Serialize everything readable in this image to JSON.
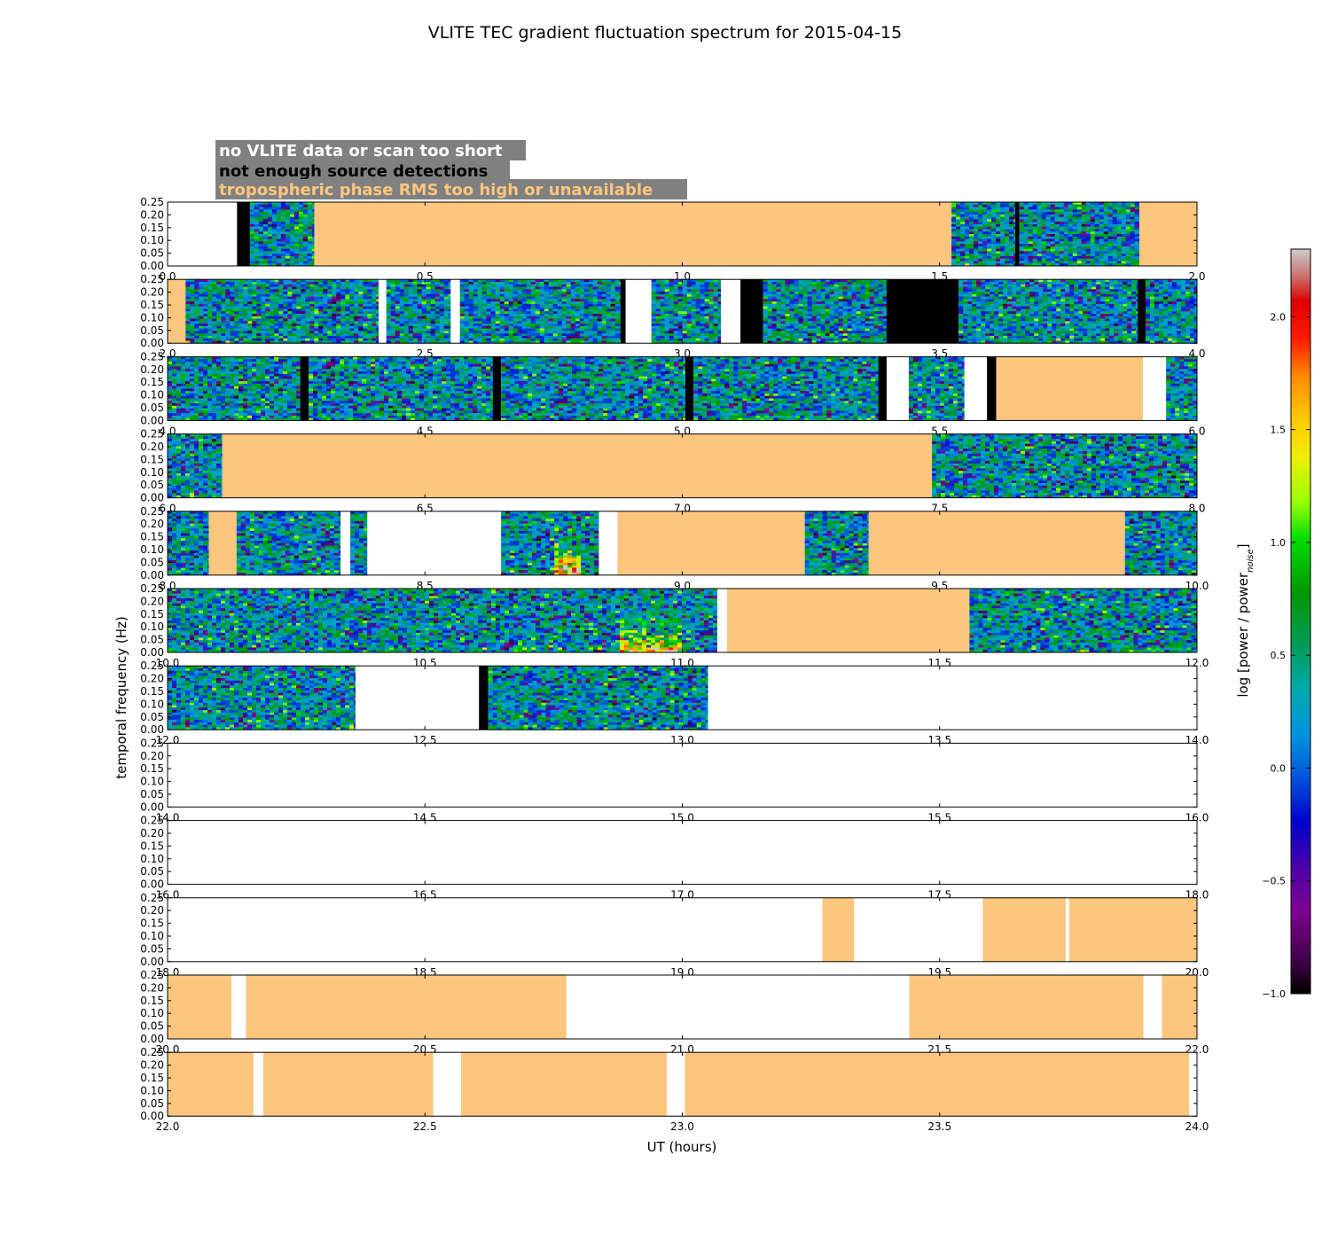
{
  "chart_data": {
    "type": "heatmap",
    "title": "VLITE TEC gradient fluctuation spectrum for 2015-04-15",
    "xlabel": "UT (hours)",
    "ylabel": "temporal frequency (Hz)",
    "ylim": [
      0,
      0.25
    ],
    "yticks": [
      "0.00",
      "0.05",
      "0.10",
      "0.15",
      "0.20",
      "0.25"
    ],
    "colorbar": {
      "label_main": "log [power / power",
      "label_sub": "noise",
      "label_end": "]",
      "range": [
        -1.0,
        2.3
      ],
      "ticks": [
        "−1.0",
        "−0.5",
        "0.0",
        "0.5",
        "1.0",
        "1.5",
        "2.0"
      ],
      "tick_values": [
        -1.0,
        -0.5,
        0.0,
        0.5,
        1.0,
        1.5,
        2.0
      ]
    },
    "legend": [
      {
        "label": "no VLITE data or scan too short",
        "text_color": "#ffffff",
        "meaning": "white"
      },
      {
        "label": "not enough source detections",
        "text_color": "#000000",
        "meaning": "black"
      },
      {
        "label": "tropospheric phase RMS too high or unavailable",
        "text_color": "#fdc67e",
        "meaning": "orange"
      }
    ],
    "legend_box_color": "#808080",
    "status_colors": {
      "none": "#ffffff",
      "few": "#000000",
      "trop": "#fdc67e"
    },
    "panels": [
      {
        "x_range": [
          0,
          2
        ],
        "xticks": [
          "0.0",
          "0.5",
          "1.0",
          "1.5",
          "2.0"
        ],
        "segments": [
          {
            "x0": 0,
            "x1": 0.135,
            "kind": "none"
          },
          {
            "x0": 0.135,
            "x1": 0.16,
            "kind": "few"
          },
          {
            "x0": 0.16,
            "x1": 0.285,
            "kind": "data"
          },
          {
            "x0": 0.285,
            "x1": 1.523,
            "kind": "trop"
          },
          {
            "x0": 1.523,
            "x1": 1.647,
            "kind": "data"
          },
          {
            "x0": 1.647,
            "x1": 1.655,
            "kind": "few"
          },
          {
            "x0": 1.655,
            "x1": 1.888,
            "kind": "data"
          },
          {
            "x0": 1.888,
            "x1": 2.0,
            "kind": "trop"
          }
        ]
      },
      {
        "x_range": [
          2,
          4
        ],
        "xticks": [
          "2.0",
          "2.5",
          "3.0",
          "3.5",
          "4.0"
        ],
        "segments": [
          {
            "x0": 2.0,
            "x1": 2.035,
            "kind": "trop"
          },
          {
            "x0": 2.035,
            "x1": 2.41,
            "kind": "data"
          },
          {
            "x0": 2.41,
            "x1": 2.425,
            "kind": "none"
          },
          {
            "x0": 2.425,
            "x1": 2.55,
            "kind": "data"
          },
          {
            "x0": 2.55,
            "x1": 2.568,
            "kind": "none"
          },
          {
            "x0": 2.568,
            "x1": 2.88,
            "kind": "data"
          },
          {
            "x0": 2.88,
            "x1": 2.89,
            "kind": "few"
          },
          {
            "x0": 2.89,
            "x1": 2.94,
            "kind": "none"
          },
          {
            "x0": 2.94,
            "x1": 3.075,
            "kind": "data"
          },
          {
            "x0": 3.075,
            "x1": 3.113,
            "kind": "none"
          },
          {
            "x0": 3.113,
            "x1": 3.157,
            "kind": "few"
          },
          {
            "x0": 3.157,
            "x1": 3.397,
            "kind": "data"
          },
          {
            "x0": 3.397,
            "x1": 3.537,
            "kind": "few"
          },
          {
            "x0": 3.537,
            "x1": 3.885,
            "kind": "data"
          },
          {
            "x0": 3.885,
            "x1": 3.9,
            "kind": "few"
          },
          {
            "x0": 3.9,
            "x1": 4.0,
            "kind": "data"
          }
        ]
      },
      {
        "x_range": [
          4,
          6
        ],
        "xticks": [
          "4.0",
          "4.5",
          "5.0",
          "5.5",
          "6.0"
        ],
        "segments": [
          {
            "x0": 4.0,
            "x1": 4.258,
            "kind": "data"
          },
          {
            "x0": 4.258,
            "x1": 4.274,
            "kind": "few"
          },
          {
            "x0": 4.274,
            "x1": 4.632,
            "kind": "data"
          },
          {
            "x0": 4.632,
            "x1": 4.648,
            "kind": "few"
          },
          {
            "x0": 4.648,
            "x1": 5.006,
            "kind": "data"
          },
          {
            "x0": 5.006,
            "x1": 5.022,
            "kind": "few"
          },
          {
            "x0": 5.022,
            "x1": 5.381,
            "kind": "data"
          },
          {
            "x0": 5.381,
            "x1": 5.397,
            "kind": "few"
          },
          {
            "x0": 5.397,
            "x1": 5.44,
            "kind": "none"
          },
          {
            "x0": 5.44,
            "x1": 5.548,
            "kind": "data"
          },
          {
            "x0": 5.548,
            "x1": 5.592,
            "kind": "none"
          },
          {
            "x0": 5.592,
            "x1": 5.61,
            "kind": "few"
          },
          {
            "x0": 5.61,
            "x1": 5.895,
            "kind": "trop"
          },
          {
            "x0": 5.895,
            "x1": 5.94,
            "kind": "none"
          },
          {
            "x0": 5.94,
            "x1": 6.0,
            "kind": "data"
          }
        ]
      },
      {
        "x_range": [
          6,
          8
        ],
        "xticks": [
          "6.0",
          "6.5",
          "7.0",
          "7.5",
          "8.0"
        ],
        "segments": [
          {
            "x0": 6.0,
            "x1": 6.106,
            "kind": "data"
          },
          {
            "x0": 6.106,
            "x1": 7.485,
            "kind": "trop"
          },
          {
            "x0": 7.485,
            "x1": 8.0,
            "kind": "data"
          }
        ]
      },
      {
        "x_range": [
          8,
          10
        ],
        "xticks": [
          "8.0",
          "8.5",
          "9.0",
          "9.5",
          "10.0"
        ],
        "segments": [
          {
            "x0": 8.0,
            "x1": 8.08,
            "kind": "data"
          },
          {
            "x0": 8.08,
            "x1": 8.134,
            "kind": "trop"
          },
          {
            "x0": 8.134,
            "x1": 8.336,
            "kind": "data"
          },
          {
            "x0": 8.336,
            "x1": 8.355,
            "kind": "none"
          },
          {
            "x0": 8.355,
            "x1": 8.388,
            "kind": "data"
          },
          {
            "x0": 8.388,
            "x1": 8.648,
            "kind": "none"
          },
          {
            "x0": 8.648,
            "x1": 8.838,
            "kind": "data"
          },
          {
            "x0": 8.838,
            "x1": 8.874,
            "kind": "none"
          },
          {
            "x0": 8.874,
            "x1": 9.238,
            "kind": "trop"
          },
          {
            "x0": 9.238,
            "x1": 9.362,
            "kind": "data"
          },
          {
            "x0": 9.362,
            "x1": 9.86,
            "kind": "trop"
          },
          {
            "x0": 9.86,
            "x1": 10.0,
            "kind": "data"
          }
        ]
      },
      {
        "x_range": [
          10,
          12
        ],
        "xticks": [
          "10.0",
          "10.5",
          "11.0",
          "11.5",
          "12.0"
        ],
        "segments": [
          {
            "x0": 10.0,
            "x1": 11.068,
            "kind": "data"
          },
          {
            "x0": 11.068,
            "x1": 11.087,
            "kind": "none"
          },
          {
            "x0": 11.087,
            "x1": 11.558,
            "kind": "trop"
          },
          {
            "x0": 11.558,
            "x1": 12.0,
            "kind": "data"
          }
        ]
      },
      {
        "x_range": [
          12,
          14
        ],
        "xticks": [
          "12.0",
          "12.5",
          "13.0",
          "13.5",
          "14.0"
        ],
        "segments": [
          {
            "x0": 12.0,
            "x1": 12.365,
            "kind": "data"
          },
          {
            "x0": 12.365,
            "x1": 12.605,
            "kind": "none"
          },
          {
            "x0": 12.605,
            "x1": 12.623,
            "kind": "few"
          },
          {
            "x0": 12.623,
            "x1": 13.05,
            "kind": "data"
          },
          {
            "x0": 13.05,
            "x1": 14.0,
            "kind": "none"
          }
        ]
      },
      {
        "x_range": [
          14,
          16
        ],
        "xticks": [
          "14.0",
          "14.5",
          "15.0",
          "15.5",
          "16.0"
        ],
        "segments": [
          {
            "x0": 14.0,
            "x1": 16.0,
            "kind": "none"
          }
        ]
      },
      {
        "x_range": [
          16,
          18
        ],
        "xticks": [
          "16.0",
          "16.5",
          "17.0",
          "17.5",
          "18.0"
        ],
        "segments": [
          {
            "x0": 16.0,
            "x1": 18.0,
            "kind": "none"
          }
        ]
      },
      {
        "x_range": [
          18,
          20
        ],
        "xticks": [
          "18.0",
          "18.5",
          "19.0",
          "19.5",
          "20.0"
        ],
        "segments": [
          {
            "x0": 18.0,
            "x1": 19.272,
            "kind": "none"
          },
          {
            "x0": 19.272,
            "x1": 19.334,
            "kind": "trop"
          },
          {
            "x0": 19.334,
            "x1": 19.584,
            "kind": "none"
          },
          {
            "x0": 19.584,
            "x1": 19.745,
            "kind": "trop"
          },
          {
            "x0": 19.745,
            "x1": 19.752,
            "kind": "none"
          },
          {
            "x0": 19.752,
            "x1": 20.0,
            "kind": "trop"
          }
        ]
      },
      {
        "x_range": [
          20,
          22
        ],
        "xticks": [
          "20.0",
          "20.5",
          "21.0",
          "21.5",
          "22.0"
        ],
        "segments": [
          {
            "x0": 20.0,
            "x1": 20.124,
            "kind": "trop"
          },
          {
            "x0": 20.124,
            "x1": 20.152,
            "kind": "none"
          },
          {
            "x0": 20.152,
            "x1": 20.775,
            "kind": "trop"
          },
          {
            "x0": 20.775,
            "x1": 21.441,
            "kind": "none"
          },
          {
            "x0": 21.441,
            "x1": 21.896,
            "kind": "trop"
          },
          {
            "x0": 21.896,
            "x1": 21.932,
            "kind": "none"
          },
          {
            "x0": 21.932,
            "x1": 22.0,
            "kind": "trop"
          }
        ]
      },
      {
        "x_range": [
          22,
          24
        ],
        "xticks": [
          "22.0",
          "22.5",
          "23.0",
          "23.5",
          "24.0"
        ],
        "segments": [
          {
            "x0": 22.0,
            "x1": 22.167,
            "kind": "trop"
          },
          {
            "x0": 22.167,
            "x1": 22.186,
            "kind": "none"
          },
          {
            "x0": 22.186,
            "x1": 22.516,
            "kind": "trop"
          },
          {
            "x0": 22.516,
            "x1": 22.57,
            "kind": "none"
          },
          {
            "x0": 22.57,
            "x1": 22.97,
            "kind": "trop"
          },
          {
            "x0": 22.97,
            "x1": 23.005,
            "kind": "none"
          },
          {
            "x0": 23.005,
            "x1": 23.985,
            "kind": "trop"
          },
          {
            "x0": 23.985,
            "x1": 24.0,
            "kind": "none"
          }
        ]
      }
    ],
    "hotspots": [
      {
        "x0": 8.755,
        "x1": 8.8,
        "peak": 2.1
      },
      {
        "x0": 10.88,
        "x1": 11.0,
        "peak": 1.8
      }
    ]
  }
}
